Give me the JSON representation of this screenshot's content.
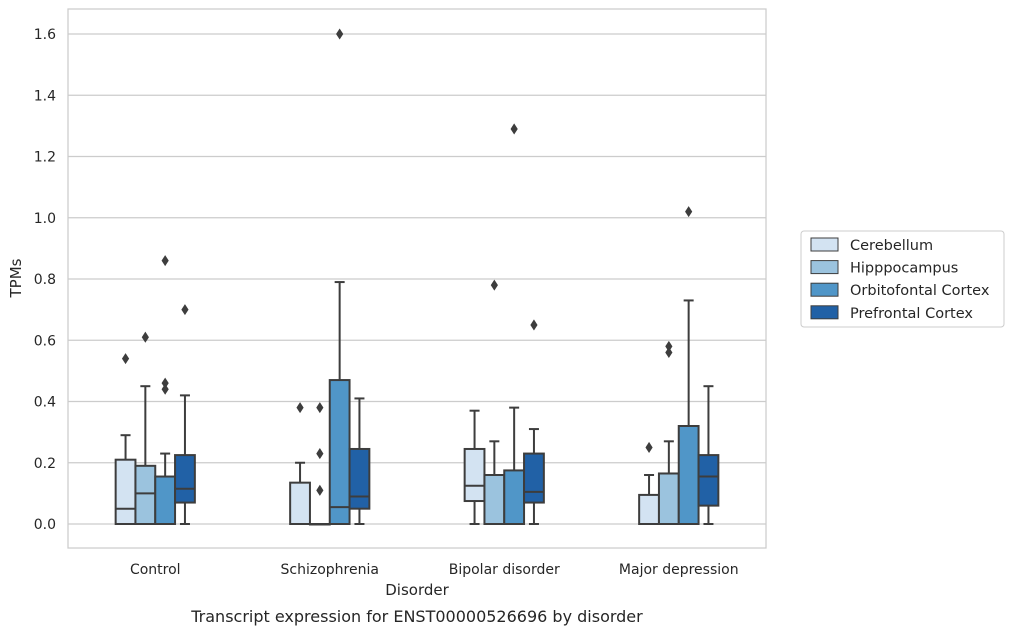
{
  "chart_data": {
    "type": "box",
    "caption": "Transcript expression for ENST00000526696 by disorder",
    "xlabel": "Disorder",
    "ylabel": "TPMs",
    "ylim": [
      -0.08,
      1.68
    ],
    "yticks": [
      "0.0",
      "0.2",
      "0.4",
      "0.6",
      "0.8",
      "1.0",
      "1.2",
      "1.4",
      "1.6"
    ],
    "grid": true,
    "legend_position": "right",
    "categories": [
      "Control",
      "Schizophrenia",
      "Bipolar disorder",
      "Major depression"
    ],
    "series": [
      {
        "name": "Cerebellum",
        "color": "#d3e3f2",
        "boxes": [
          {
            "min": 0.0,
            "q1": 0.0,
            "median": 0.05,
            "q3": 0.21,
            "max": 0.29,
            "outliers": [
              0.54
            ]
          },
          {
            "min": 0.0,
            "q1": 0.0,
            "median": 0.0,
            "q3": 0.135,
            "max": 0.2,
            "outliers": [
              0.38
            ]
          },
          {
            "min": 0.0,
            "q1": 0.075,
            "median": 0.125,
            "q3": 0.245,
            "max": 0.37,
            "outliers": []
          },
          {
            "min": 0.0,
            "q1": 0.0,
            "median": 0.0,
            "q3": 0.095,
            "max": 0.16,
            "outliers": [
              0.25
            ]
          }
        ]
      },
      {
        "name": "Hipppocampus",
        "color": "#9bc3de",
        "boxes": [
          {
            "min": 0.0,
            "q1": 0.0,
            "median": 0.1,
            "q3": 0.19,
            "max": 0.45,
            "outliers": [
              0.61
            ]
          },
          {
            "min": 0.0,
            "q1": 0.0,
            "median": 0.0,
            "q3": 0.0,
            "max": 0.0,
            "outliers": [
              0.38,
              0.23,
              0.11
            ]
          },
          {
            "min": 0.0,
            "q1": 0.0,
            "median": 0.16,
            "q3": 0.16,
            "max": 0.27,
            "outliers": [
              0.78
            ]
          },
          {
            "min": 0.0,
            "q1": 0.0,
            "median": 0.165,
            "q3": 0.165,
            "max": 0.27,
            "outliers": [
              0.58,
              0.56
            ]
          }
        ]
      },
      {
        "name": "Orbitofontal Cortex",
        "color": "#5096c8",
        "boxes": [
          {
            "min": 0.0,
            "q1": 0.0,
            "median": 0.0,
            "q3": 0.155,
            "max": 0.23,
            "outliers": [
              0.86,
              0.46,
              0.44
            ]
          },
          {
            "min": 0.0,
            "q1": 0.0,
            "median": 0.055,
            "q3": 0.47,
            "max": 0.79,
            "outliers": [
              1.6
            ]
          },
          {
            "min": 0.0,
            "q1": 0.0,
            "median": 0.0,
            "q3": 0.175,
            "max": 0.38,
            "outliers": [
              1.29
            ]
          },
          {
            "min": 0.0,
            "q1": 0.0,
            "median": 0.0,
            "q3": 0.32,
            "max": 0.73,
            "outliers": [
              1.02
            ]
          }
        ]
      },
      {
        "name": "Prefrontal Cortex",
        "color": "#2161a6",
        "boxes": [
          {
            "min": 0.0,
            "q1": 0.07,
            "median": 0.115,
            "q3": 0.225,
            "max": 0.42,
            "outliers": [
              0.7
            ]
          },
          {
            "min": 0.0,
            "q1": 0.05,
            "median": 0.09,
            "q3": 0.245,
            "max": 0.41,
            "outliers": []
          },
          {
            "min": 0.0,
            "q1": 0.07,
            "median": 0.105,
            "q3": 0.23,
            "max": 0.31,
            "outliers": [
              0.65
            ]
          },
          {
            "min": 0.0,
            "q1": 0.06,
            "median": 0.155,
            "q3": 0.225,
            "max": 0.45,
            "outliers": []
          }
        ]
      }
    ]
  }
}
